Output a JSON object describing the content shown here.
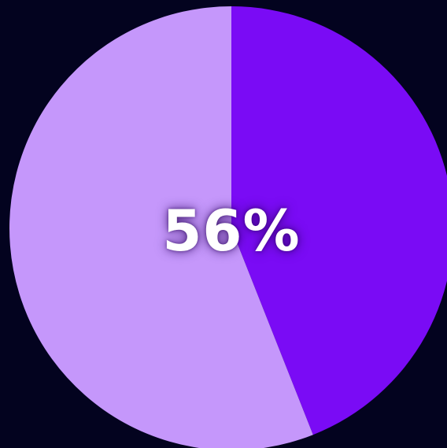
{
  "center_label": "56%",
  "colors": {
    "background": "#03031f",
    "primary_slice": "#c597fb",
    "secondary_slice": "#7a0bf5"
  },
  "chart_data": {
    "type": "pie",
    "start_angle": "12 o'clock",
    "direction": "clockwise",
    "slices": [
      {
        "value": 44,
        "color": "#7a0bf5"
      },
      {
        "value": 56,
        "color": "#c597fb"
      }
    ]
  }
}
